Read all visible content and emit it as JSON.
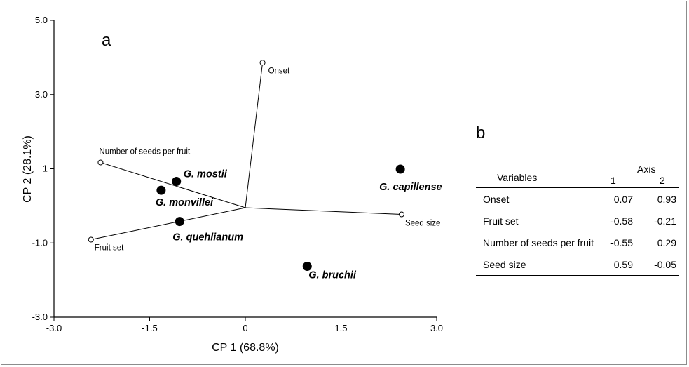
{
  "chart_data": {
    "type": "scatter",
    "panel_label": "a",
    "xlabel": "CP 1 (68.8%)",
    "ylabel": "CP 2 (28.1%)",
    "xlim": [
      -3.0,
      3.0
    ],
    "ylim": [
      -3.0,
      5.0
    ],
    "x_ticks": [
      {
        "value": -3.0,
        "label": "-3.0"
      },
      {
        "value": -1.5,
        "label": "-1.5"
      },
      {
        "value": 0,
        "label": "0"
      },
      {
        "value": 1.5,
        "label": "1.5"
      },
      {
        "value": 3.0,
        "label": "3.0"
      }
    ],
    "y_ticks": [
      {
        "value": -3.0,
        "label": "-3.0"
      },
      {
        "value": -1.0,
        "label": "-1.0"
      },
      {
        "value": 1,
        "label": "1"
      },
      {
        "value": 3.0,
        "label": "3.0"
      },
      {
        "value": 5.0,
        "label": "5.0"
      }
    ],
    "origin": [
      0.0,
      -0.05
    ],
    "grid": false,
    "species_points": [
      {
        "name": "G. mostii",
        "x": -1.08,
        "y": 0.66
      },
      {
        "name": "G. monvillei",
        "x": -1.32,
        "y": 0.42
      },
      {
        "name": "G. quehlianum",
        "x": -1.03,
        "y": -0.42
      },
      {
        "name": "G. capillense",
        "x": 2.43,
        "y": 0.99
      },
      {
        "name": "G. bruchii",
        "x": 0.97,
        "y": -1.63
      }
    ],
    "variable_vectors": [
      {
        "name": "Onset",
        "x": 0.27,
        "y": 3.86
      },
      {
        "name": "Number of seeds per fruit",
        "x": -2.27,
        "y": 1.17
      },
      {
        "name": "Fruit set",
        "x": -2.42,
        "y": -0.91
      },
      {
        "name": "Seed size",
        "x": 2.45,
        "y": -0.23
      }
    ]
  },
  "table": {
    "panel_label": "b",
    "header_variables": "Variables",
    "header_axis": "Axis",
    "col1": "1",
    "col2": "2",
    "rows": [
      {
        "name": "Onset",
        "v1": "0.07",
        "v2": "0.93"
      },
      {
        "name": "Fruit set",
        "v1": "-0.58",
        "v2": "-0.21"
      },
      {
        "name": "Number of seeds per fruit",
        "v1": "-0.55",
        "v2": "0.29"
      },
      {
        "name": "Seed size",
        "v1": "0.59",
        "v2": "-0.05"
      }
    ]
  }
}
